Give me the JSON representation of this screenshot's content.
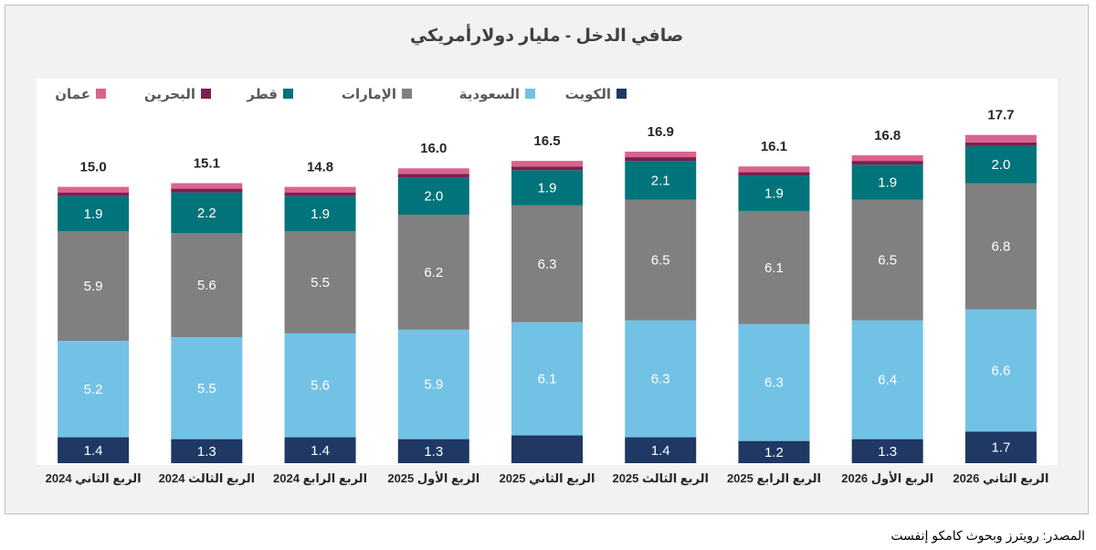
{
  "source_note": "المصدر: رويترز وبحوث كامكو إنفست",
  "chart_data": {
    "type": "bar",
    "stacked": true,
    "title": "صافي الدخل - مليار دولارأمريكي",
    "categories": [
      "الربع الثاني 2024",
      "الربع الثالث 2024",
      "الربع الرابع 2024",
      "الربع الأول 2025",
      "الربع الثاني 2025",
      "الربع الثالث 2025",
      "الربع الرابع 2025",
      "الربع الأول 2026",
      "الربع الثاني 2026"
    ],
    "series": [
      {
        "name": "الكويت",
        "color": "#1f3864",
        "values": [
          1.4,
          1.3,
          1.4,
          1.3,
          1.5,
          1.4,
          1.2,
          1.3,
          1.7
        ],
        "labels": [
          "1.4",
          "1.3",
          "1.4",
          "1.3",
          "",
          "1.4",
          "1.2",
          "1.3",
          "1.7"
        ]
      },
      {
        "name": "السعودية",
        "color": "#72c2e6",
        "values": [
          5.2,
          5.5,
          5.6,
          5.9,
          6.1,
          6.3,
          6.3,
          6.4,
          6.6
        ],
        "labels": [
          "5.2",
          "5.5",
          "5.6",
          "5.9",
          "6.1",
          "6.3",
          "6.3",
          "6.4",
          "6.6"
        ]
      },
      {
        "name": "الإمارات",
        "color": "#808080",
        "values": [
          5.9,
          5.6,
          5.5,
          6.2,
          6.3,
          6.5,
          6.1,
          6.5,
          6.8
        ],
        "labels": [
          "5.9",
          "5.6",
          "5.5",
          "6.2",
          "6.3",
          "6.5",
          "6.1",
          "6.5",
          "6.8"
        ]
      },
      {
        "name": "قطر",
        "color": "#00747a",
        "values": [
          1.9,
          2.2,
          1.9,
          2.0,
          1.9,
          2.1,
          1.9,
          1.9,
          2.0
        ],
        "labels": [
          "1.9",
          "2.2",
          "1.9",
          "2.0",
          "1.9",
          "2.1",
          "1.9",
          "1.9",
          "2.0"
        ]
      },
      {
        "name": "البحرين",
        "color": "#7b1f4f",
        "values": [
          0.2,
          0.2,
          0.2,
          0.2,
          0.2,
          0.2,
          0.2,
          0.2,
          0.2
        ],
        "labels": [
          "",
          "",
          "",
          "",
          "",
          "",
          "",
          "",
          ""
        ]
      },
      {
        "name": "عمان",
        "color": "#d9648e",
        "values": [
          0.3,
          0.3,
          0.3,
          0.3,
          0.3,
          0.3,
          0.3,
          0.3,
          0.4
        ],
        "labels": [
          "",
          "",
          "",
          "",
          "",
          "",
          "",
          "",
          ""
        ]
      }
    ],
    "totals": [
      "15.0",
      "15.1",
      "14.8",
      "16.0",
      "16.5",
      "16.9",
      "16.1",
      "16.8",
      "17.7"
    ],
    "legend_order": [
      "عمان",
      "البحرين",
      "قطر",
      "الإمارات",
      "السعودية",
      "الكويت"
    ],
    "legend_position": "top",
    "ylim": [
      0,
      20
    ],
    "grid": false
  }
}
